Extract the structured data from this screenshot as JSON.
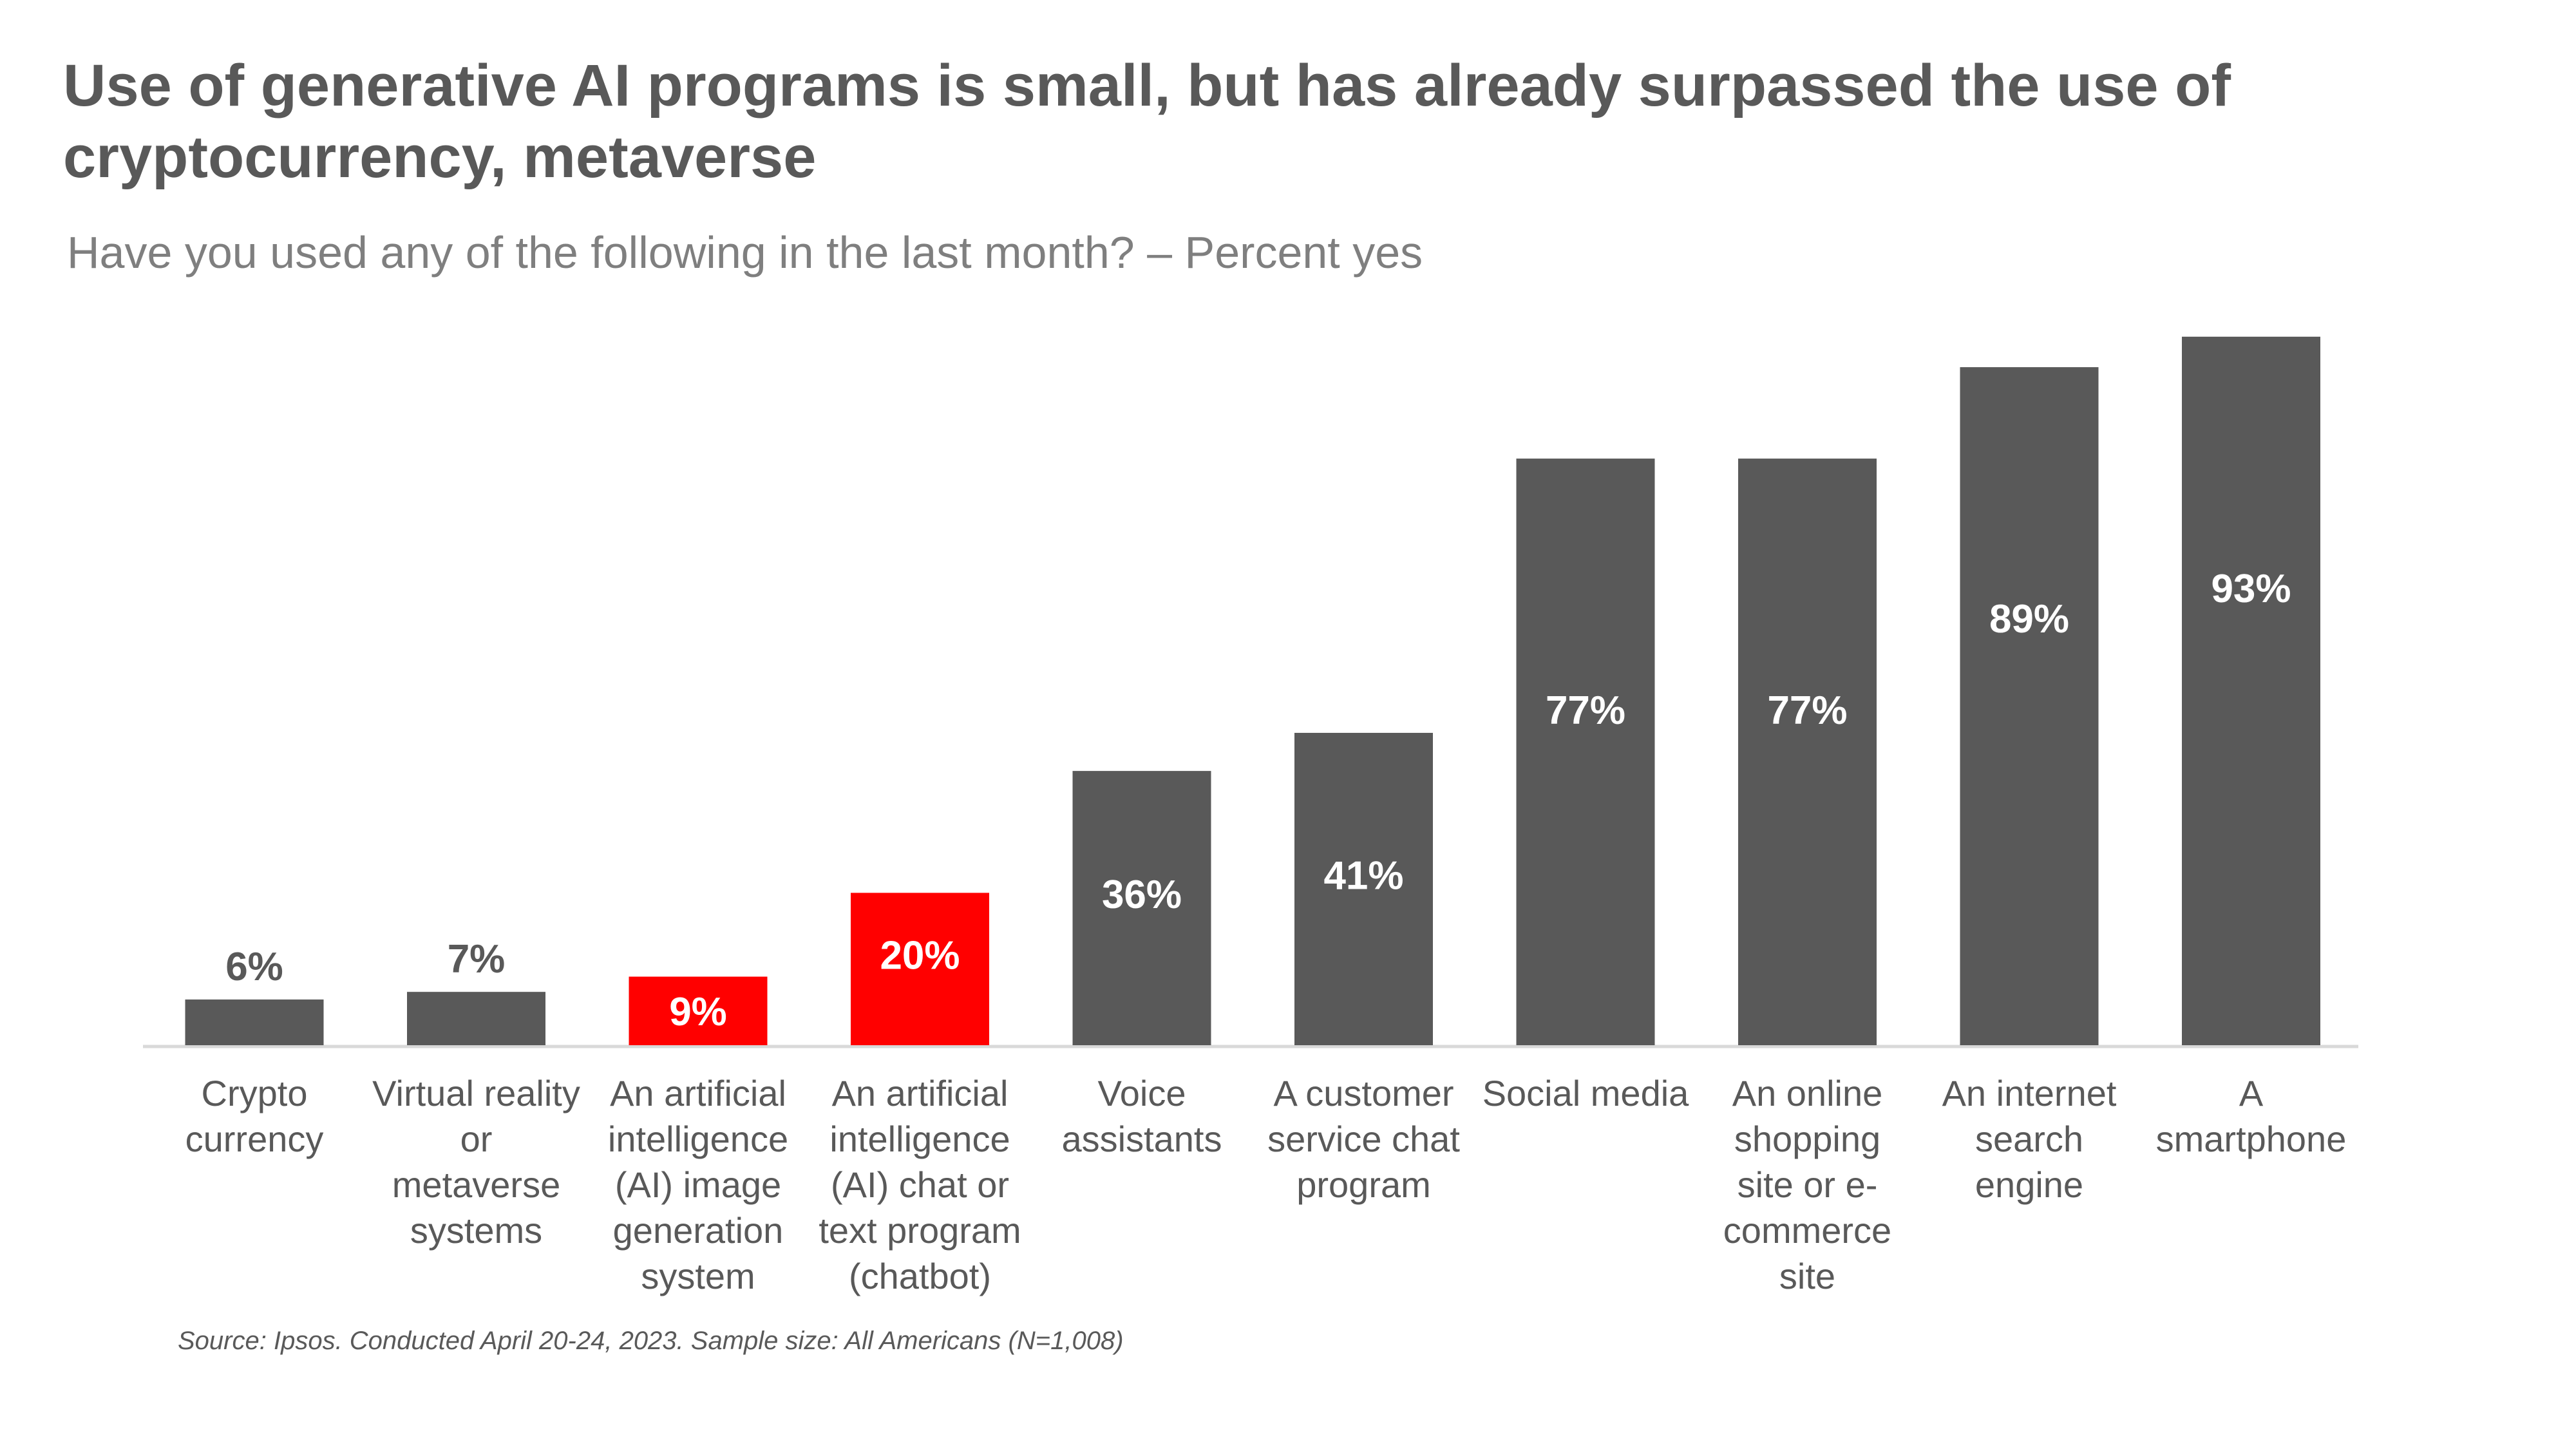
{
  "header": {
    "title": "Use of generative AI programs is small, but has already surpassed the use of cryptocurrency, metaverse",
    "subtitle": "Have you used any of the following in the last month? – Percent yes"
  },
  "footer": {
    "source": "Source: Ipsos. Conducted April 20-24, 2023. Sample size: All Americans (N=1,008)"
  },
  "colors": {
    "default_bar": "#595959",
    "highlight_bar": "#ff0000",
    "axis_line": "#d9d9d9",
    "label_outside": "#595959",
    "label_inside": "#ffffff"
  },
  "chart_data": {
    "type": "bar",
    "title": "Use of generative AI programs is small, but has already surpassed the use of cryptocurrency, metaverse",
    "subtitle": "Have you used any of the following in the last month? – Percent yes",
    "xlabel": "",
    "ylabel": "",
    "ylim": [
      0,
      100
    ],
    "grid": false,
    "categories": [
      [
        "Crypto",
        "currency"
      ],
      [
        "Virtual reality",
        "or",
        "metaverse",
        "systems"
      ],
      [
        "An artificial",
        "intelligence",
        "(AI) image",
        "generation",
        "system"
      ],
      [
        "An artificial",
        "intelligence",
        "(AI) chat or",
        "text program",
        "(chatbot)"
      ],
      [
        "Voice",
        "assistants"
      ],
      [
        "A customer",
        "service chat",
        "program"
      ],
      [
        "Social media"
      ],
      [
        "An online",
        "shopping",
        "site or e-",
        "commerce",
        "site"
      ],
      [
        "An internet",
        "search",
        "engine"
      ],
      [
        "A",
        "smartphone"
      ]
    ],
    "values": [
      6,
      7,
      9,
      20,
      36,
      41,
      77,
      77,
      89,
      93
    ],
    "data_labels": [
      "6%",
      "7%",
      "9%",
      "20%",
      "36%",
      "41%",
      "77%",
      "77%",
      "89%",
      "93%"
    ],
    "highlighted": [
      false,
      false,
      true,
      true,
      false,
      false,
      false,
      false,
      false,
      false
    ]
  }
}
